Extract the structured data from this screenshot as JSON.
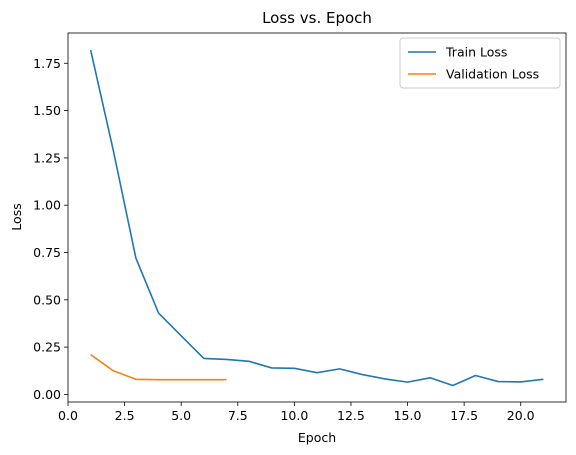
{
  "chart_data": {
    "type": "line",
    "title": "Loss vs. Epoch",
    "xlabel": "Epoch",
    "ylabel": "Loss",
    "xlim": [
      0.0,
      22.0
    ],
    "ylim": [
      -0.04,
      1.91
    ],
    "x_ticks": [
      0.0,
      2.5,
      5.0,
      7.5,
      10.0,
      12.5,
      15.0,
      17.5,
      20.0
    ],
    "x_tick_labels": [
      "0.0",
      "2.5",
      "5.0",
      "7.5",
      "10.0",
      "12.5",
      "15.0",
      "17.5",
      "20.0"
    ],
    "y_ticks": [
      0.0,
      0.25,
      0.5,
      0.75,
      1.0,
      1.25,
      1.5,
      1.75
    ],
    "y_tick_labels": [
      "0.00",
      "0.25",
      "0.50",
      "0.75",
      "1.00",
      "1.25",
      "1.50",
      "1.75"
    ],
    "grid": false,
    "legend_position": "top-right",
    "series": [
      {
        "name": "Train Loss",
        "color": "#1f77b4",
        "x": [
          1,
          2,
          3,
          4,
          5,
          6,
          7,
          8,
          9,
          10,
          11,
          12,
          13,
          14,
          15,
          16,
          17,
          18,
          19,
          20,
          21
        ],
        "y": [
          1.82,
          1.29,
          0.72,
          0.43,
          0.31,
          0.19,
          0.185,
          0.175,
          0.14,
          0.138,
          0.115,
          0.135,
          0.105,
          0.082,
          0.065,
          0.088,
          0.047,
          0.1,
          0.068,
          0.066,
          0.08
        ]
      },
      {
        "name": "Validation Loss",
        "color": "#ff7f0e",
        "x": [
          1,
          2,
          3,
          4,
          5,
          6,
          7
        ],
        "y": [
          0.21,
          0.125,
          0.08,
          0.078,
          0.078,
          0.078,
          0.078
        ]
      }
    ]
  }
}
